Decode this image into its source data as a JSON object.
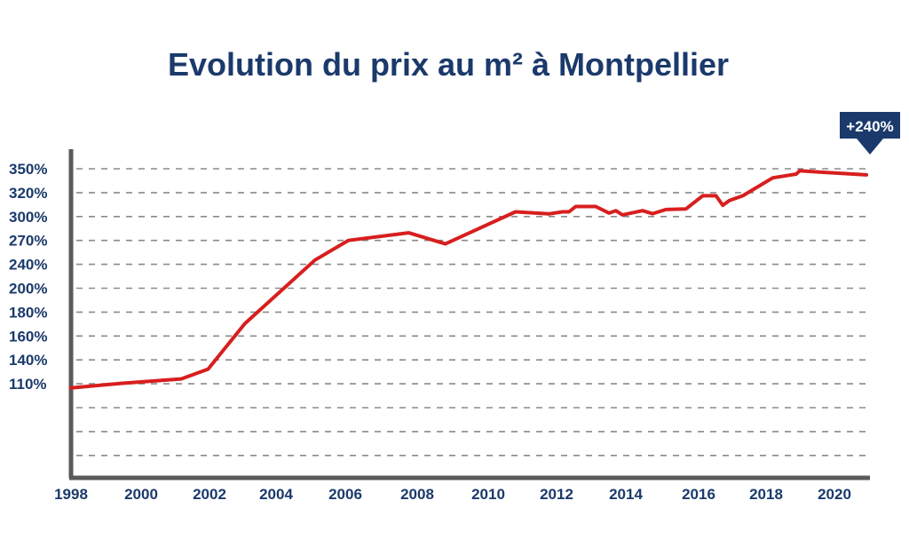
{
  "chart_data": {
    "type": "line",
    "title": "Evolution du prix au m² à Montpellier",
    "xlabel": "",
    "ylabel": "",
    "y_tick_labels": [
      "350%",
      "320%",
      "300%",
      "270%",
      "240%",
      "200%",
      "180%",
      "160%",
      "140%",
      "110%"
    ],
    "x_tick_labels": [
      "1998",
      "2000",
      "2002",
      "2004",
      "2006",
      "2008",
      "2010",
      "2012",
      "2014",
      "2016",
      "2018",
      "2020"
    ],
    "xlim": [
      1998,
      2021.8
    ],
    "grid": true,
    "line_color": "#d81e1e",
    "accent_color": "#1b3a6b",
    "badge": "+240%",
    "series": [
      {
        "x": [
          1998.0,
          1999.5,
          2001.3,
          2002.1,
          2003.2,
          2005.3,
          2006.3,
          2008.1,
          2009.2,
          2011.3,
          2012.3,
          2012.7,
          2012.9,
          2013.1,
          2013.7,
          2014.1,
          2014.3,
          2014.5,
          2015.1,
          2015.4,
          2015.8,
          2016.4,
          2016.9,
          2017.3,
          2017.5,
          2017.7,
          2018.1,
          2019.0,
          2019.7,
          2019.8,
          2020.4,
          2021.8
        ],
        "y": [
          105.8,
          111.4,
          117.0,
          129.3,
          170.9,
          246.2,
          270.9,
          280.5,
          266.5,
          304.5,
          302.8,
          304.5,
          304.5,
          309.0,
          309.0,
          303.5,
          305.5,
          302.0,
          305.5,
          303.0,
          306.5,
          307.0,
          318.0,
          318.0,
          310.0,
          314.0,
          318.0,
          339.0,
          343.5,
          347.5,
          346.0,
          342.5
        ]
      }
    ]
  }
}
